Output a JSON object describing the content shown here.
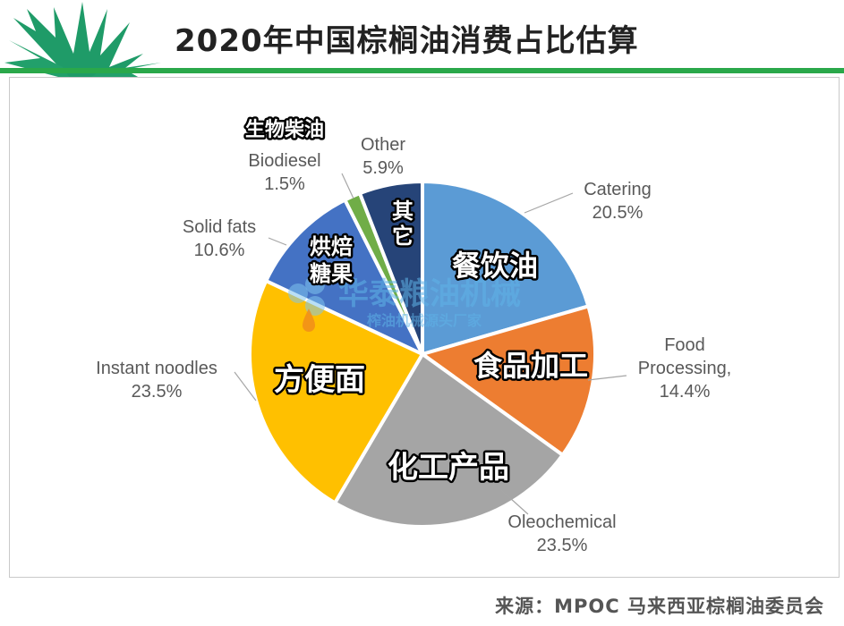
{
  "title": "2020年中国棕榈油消费占比估算",
  "source": "来源：MPOC 马来西亚棕榈油委员会",
  "watermark": {
    "main": "华泰粮油机械",
    "sub": "榨油机械源头厂家"
  },
  "colors": {
    "accent_green": "#2aa84a",
    "catering": "#5b9bd5",
    "food_processing": "#ed7d31",
    "oleochemical": "#a5a5a5",
    "instant_noodles": "#ffc000",
    "solid_fats": "#4472c4",
    "biodiesel": "#70ad47",
    "other": "#264478"
  },
  "chart_data": {
    "type": "pie",
    "title": "2020年中国棕榈油消费占比估算",
    "start": "12 o'clock, clockwise",
    "slices": [
      {
        "key": "catering",
        "name": "Catering",
        "value": 20.5,
        "label": "20.5%",
        "zh": [
          "餐饮油"
        ],
        "zh_size": "large"
      },
      {
        "key": "food_processing",
        "name": "Food Processing,",
        "name_lines": [
          "Food",
          "Processing,"
        ],
        "value": 14.4,
        "label": "14.4%",
        "zh": [
          "食品加工"
        ],
        "zh_size": "large"
      },
      {
        "key": "oleochemical",
        "name": "Oleochemical",
        "value": 23.5,
        "label": "23.5%",
        "zh": [
          "化工产品"
        ],
        "zh_size": "large"
      },
      {
        "key": "instant_noodles",
        "name": "Instant noodles",
        "value": 23.5,
        "label": "23.5%",
        "zh": [
          "方便面"
        ],
        "zh_size": "large"
      },
      {
        "key": "solid_fats",
        "name": "Solid fats",
        "value": 10.6,
        "label": "10.6%",
        "zh": [
          "烘焙",
          "糖果"
        ],
        "zh_size": "small"
      },
      {
        "key": "biodiesel",
        "name": "Biodiesel",
        "value": 1.5,
        "label": "1.5%",
        "zh": [
          "生物柴油"
        ],
        "zh_size": "outside"
      },
      {
        "key": "other",
        "name": "Other",
        "value": 5.9,
        "label": "5.9%",
        "zh": [
          "其",
          "它"
        ],
        "zh_size": "small"
      }
    ]
  }
}
